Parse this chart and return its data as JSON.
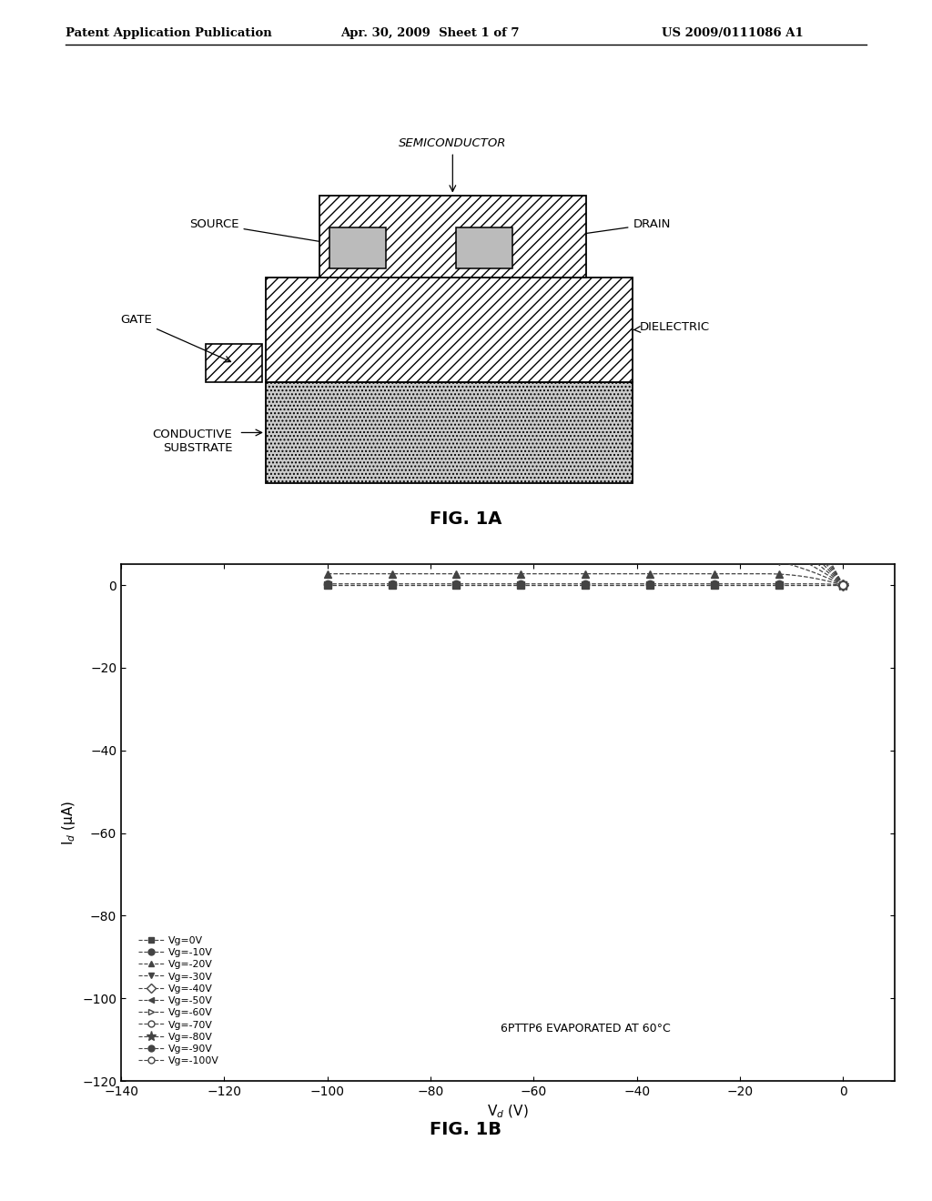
{
  "header_left": "Patent Application Publication",
  "header_mid": "Apr. 30, 2009  Sheet 1 of 7",
  "header_right": "US 2009/0111086 A1",
  "fig1a_label": "FIG. 1A",
  "fig1b_label": "FIG. 1B",
  "annotation": "6PTTP6 EVAPORATED AT 60°C",
  "xlabel": "V$_d$ (V)",
  "ylabel": "I$_d$ (μA)",
  "xlim": [
    -140,
    10
  ],
  "ylim": [
    -120,
    5
  ],
  "xticks": [
    -140,
    -120,
    -100,
    -80,
    -60,
    -40,
    -20,
    0
  ],
  "yticks": [
    -120,
    -100,
    -80,
    -60,
    -40,
    -20,
    0
  ],
  "labels": [
    "Vg=0V",
    "Vg=-10V",
    "Vg=-20V",
    "Vg=-30V",
    "Vg=-40V",
    "Vg=-50V",
    "Vg=-60V",
    "Vg=-70V",
    "Vg=-80V",
    "Vg=-90V",
    "Vg=-100V"
  ],
  "Vg_list": [
    0,
    -10,
    -20,
    -30,
    -40,
    -50,
    -60,
    -70,
    -80,
    -90,
    -100
  ],
  "markers": [
    "s",
    "o",
    "^",
    "v",
    "D",
    "<",
    ">",
    "o",
    "*",
    "o",
    "o"
  ],
  "filled": [
    true,
    true,
    true,
    true,
    false,
    true,
    false,
    false,
    true,
    true,
    false
  ],
  "mu_Cox_WL": 0.0244,
  "Vth": -5,
  "bg_color": "#ffffff",
  "plot_color": "#444444"
}
